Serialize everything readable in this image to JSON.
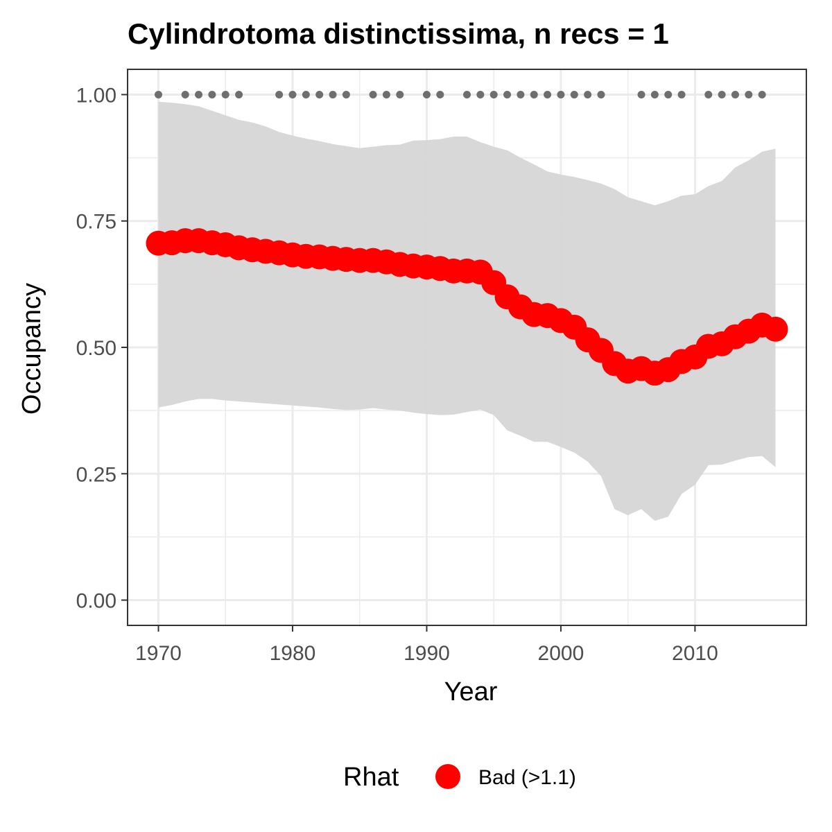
{
  "chart_data": {
    "type": "line",
    "title": "Cylindrotoma distinctissima, n recs = 1",
    "xlabel": "Year",
    "ylabel": "Occupancy",
    "xlim": [
      1967.7,
      2018.3
    ],
    "ylim": [
      -0.05,
      1.05
    ],
    "x_ticks": [
      1970,
      1980,
      1990,
      2000,
      2010
    ],
    "y_ticks": [
      0.0,
      0.25,
      0.5,
      0.75,
      1.0
    ],
    "y_tick_labels": [
      "0.00",
      "0.25",
      "0.50",
      "0.75",
      "1.00"
    ],
    "grid": true,
    "legend": {
      "title": "Rhat",
      "placement": "bottom",
      "entries": [
        {
          "label": "Bad (>1.1)",
          "color": "#ff0000"
        }
      ]
    },
    "colors": {
      "series": "#ff0000",
      "ribbon": "#d6d6d6",
      "records": "#6e6e6e",
      "grid": "#ebebeb",
      "panel_border": "#333333"
    },
    "series": {
      "x": [
        1970,
        1971,
        1972,
        1973,
        1974,
        1975,
        1976,
        1977,
        1978,
        1979,
        1980,
        1981,
        1982,
        1983,
        1984,
        1985,
        1986,
        1987,
        1988,
        1989,
        1990,
        1991,
        1992,
        1993,
        1994,
        1995,
        1996,
        1997,
        1998,
        1999,
        2000,
        2001,
        2002,
        2003,
        2004,
        2005,
        2006,
        2007,
        2008,
        2009,
        2010,
        2011,
        2012,
        2013,
        2014,
        2015,
        2016
      ],
      "values": [
        0.706,
        0.707,
        0.711,
        0.711,
        0.707,
        0.703,
        0.697,
        0.693,
        0.69,
        0.687,
        0.683,
        0.68,
        0.679,
        0.676,
        0.674,
        0.672,
        0.672,
        0.669,
        0.664,
        0.661,
        0.659,
        0.656,
        0.651,
        0.651,
        0.649,
        0.628,
        0.6,
        0.58,
        0.565,
        0.563,
        0.553,
        0.54,
        0.515,
        0.494,
        0.468,
        0.453,
        0.458,
        0.449,
        0.456,
        0.472,
        0.481,
        0.502,
        0.507,
        0.521,
        0.532,
        0.544,
        0.536
      ]
    },
    "interval": {
      "x": [
        1970,
        1971,
        1972,
        1973,
        1974,
        1975,
        1976,
        1977,
        1978,
        1979,
        1980,
        1981,
        1982,
        1983,
        1984,
        1985,
        1986,
        1987,
        1988,
        1989,
        1990,
        1991,
        1992,
        1993,
        1994,
        1995,
        1996,
        1997,
        1998,
        1999,
        2000,
        2001,
        2002,
        2003,
        2004,
        2005,
        2006,
        2007,
        2008,
        2009,
        2010,
        2011,
        2012,
        2013,
        2014,
        2015,
        2016
      ],
      "lower": [
        0.381,
        0.386,
        0.393,
        0.398,
        0.398,
        0.395,
        0.393,
        0.391,
        0.389,
        0.387,
        0.385,
        0.383,
        0.381,
        0.378,
        0.376,
        0.377,
        0.38,
        0.377,
        0.375,
        0.371,
        0.368,
        0.366,
        0.367,
        0.372,
        0.377,
        0.366,
        0.336,
        0.325,
        0.313,
        0.313,
        0.303,
        0.292,
        0.274,
        0.245,
        0.18,
        0.168,
        0.18,
        0.157,
        0.165,
        0.21,
        0.228,
        0.267,
        0.268,
        0.276,
        0.283,
        0.285,
        0.263
      ],
      "upper": [
        0.986,
        0.984,
        0.981,
        0.977,
        0.968,
        0.959,
        0.95,
        0.945,
        0.937,
        0.926,
        0.919,
        0.913,
        0.908,
        0.902,
        0.898,
        0.894,
        0.897,
        0.9,
        0.901,
        0.909,
        0.91,
        0.912,
        0.917,
        0.917,
        0.906,
        0.897,
        0.89,
        0.875,
        0.862,
        0.848,
        0.842,
        0.837,
        0.831,
        0.824,
        0.813,
        0.797,
        0.789,
        0.781,
        0.789,
        0.8,
        0.803,
        0.819,
        0.829,
        0.856,
        0.87,
        0.887,
        0.893
      ]
    },
    "record_years": [
      1970,
      1972,
      1973,
      1974,
      1975,
      1976,
      1979,
      1980,
      1981,
      1982,
      1983,
      1984,
      1986,
      1987,
      1988,
      1990,
      1991,
      1993,
      1994,
      1995,
      1996,
      1997,
      1998,
      1999,
      2000,
      2001,
      2002,
      2003,
      2006,
      2007,
      2008,
      2009,
      2011,
      2012,
      2013,
      2014,
      2015
    ],
    "record_level": 1.0
  }
}
